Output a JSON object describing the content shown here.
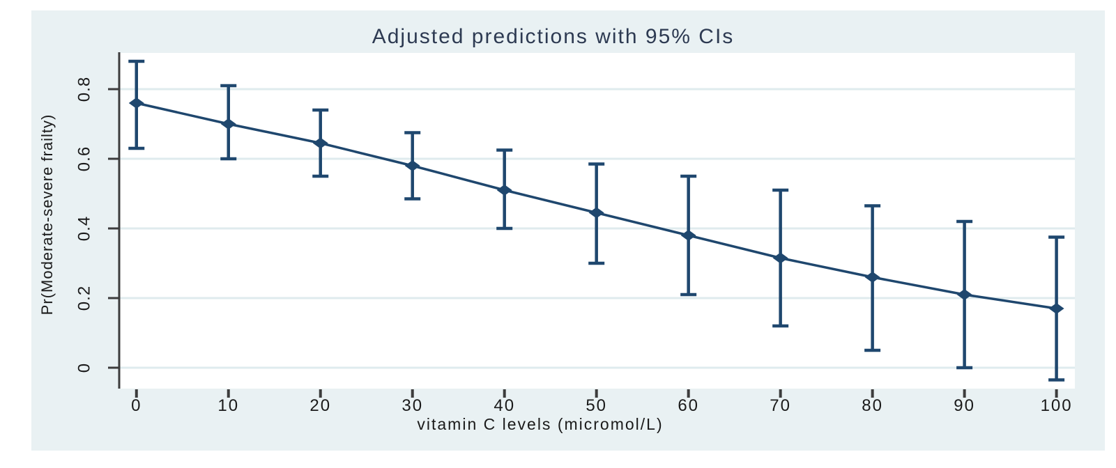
{
  "chart_data": {
    "type": "line",
    "title": "Adjusted predictions with 95% CIs",
    "xlabel": "vitamin C levels (micromol/L)",
    "ylabel": "Pr(Moderate-severe frailty)",
    "x": [
      0,
      10,
      20,
      30,
      40,
      50,
      60,
      70,
      80,
      90,
      100
    ],
    "series": [
      {
        "name": "Adjusted prediction",
        "values": [
          0.76,
          0.7,
          0.645,
          0.58,
          0.51,
          0.445,
          0.38,
          0.315,
          0.26,
          0.21,
          0.17
        ]
      }
    ],
    "ci_lower": [
      0.63,
      0.6,
      0.55,
      0.485,
      0.4,
      0.3,
      0.21,
      0.12,
      0.05,
      0.0,
      -0.035
    ],
    "ci_upper": [
      0.88,
      0.81,
      0.74,
      0.675,
      0.625,
      0.585,
      0.55,
      0.51,
      0.465,
      0.42,
      0.375
    ],
    "x_tick_labels": [
      "0",
      "10",
      "20",
      "30",
      "40",
      "50",
      "60",
      "70",
      "80",
      "90",
      "100"
    ],
    "y_tick_labels": [
      "0",
      "0.2",
      "0.4",
      "0.6",
      "0.8"
    ],
    "y_tick_values": [
      0,
      0.2,
      0.4,
      0.6,
      0.8
    ],
    "xlim": [
      -1.8,
      102
    ],
    "ylim": [
      -0.06,
      0.904
    ],
    "grid": true,
    "legend_position": "none",
    "marker": "diamond",
    "colors": {
      "series": "#1f476e",
      "figure_background": "#e9f1f3",
      "plot_background": "#ffffff",
      "gridline": "#dfebee",
      "axis": "#3c3c3c",
      "tick_text": "#1a1a1a",
      "title_text": "#2d3a52"
    }
  }
}
